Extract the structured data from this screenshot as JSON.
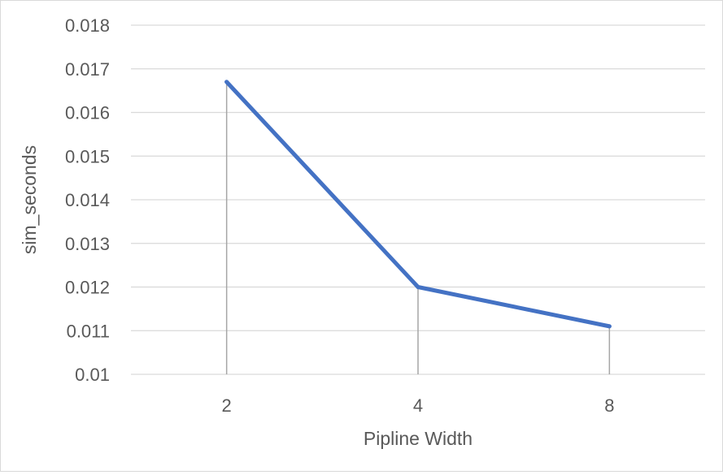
{
  "chart_data": {
    "type": "line",
    "title": "",
    "xlabel": "Pipline Width",
    "ylabel": "sim_seconds",
    "categories": [
      "2",
      "4",
      "8"
    ],
    "series": [
      {
        "values": [
          0.0167,
          0.012,
          0.0111
        ]
      }
    ],
    "ylim": [
      0.01,
      0.018
    ],
    "yticks": [
      "0.01",
      "0.011",
      "0.012",
      "0.013",
      "0.014",
      "0.015",
      "0.016",
      "0.017",
      "0.018"
    ],
    "drop_lines": true,
    "grid": "horizontal",
    "legend": "none",
    "colors": {
      "series": "#4472c4",
      "grid": "#d9d9d9",
      "drop_line": "#a6a6a6",
      "text": "#595959"
    }
  }
}
